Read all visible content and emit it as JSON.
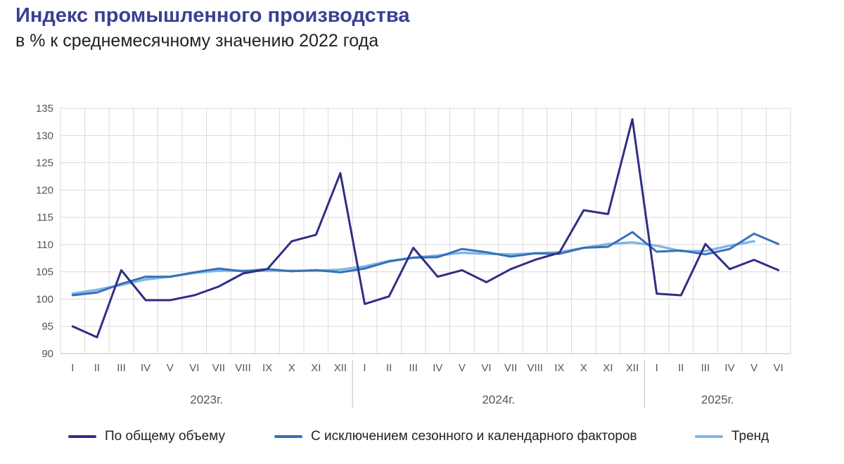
{
  "title": "Индекс промышленного производства",
  "subtitle": "в % к среднемесячному значению 2022 года",
  "colors": {
    "total": "#2f2f86",
    "seasonal": "#3a6fb5",
    "trend": "#7db6ea",
    "grid": "#d9d9d9",
    "axis_text": "#555555"
  },
  "chart_data": {
    "type": "line",
    "ylim": [
      90,
      135
    ],
    "yticks": [
      90,
      95,
      100,
      105,
      110,
      115,
      120,
      125,
      130,
      135
    ],
    "grid": true,
    "legend_position": "bottom",
    "categories": [
      "I",
      "II",
      "III",
      "IV",
      "V",
      "VI",
      "VII",
      "VIII",
      "IX",
      "X",
      "XI",
      "XII",
      "I",
      "II",
      "III",
      "IV",
      "V",
      "VI",
      "VII",
      "VIII",
      "IX",
      "X",
      "XI",
      "XII",
      "I",
      "II",
      "III",
      "IV",
      "V",
      "VI"
    ],
    "groups": [
      {
        "label": "2023г.",
        "months": 12
      },
      {
        "label": "2024г.",
        "months": 12
      },
      {
        "label": "2025г.",
        "months": 6
      }
    ],
    "series": [
      {
        "name": "По общему объему",
        "color": "#2f2f86",
        "values": [
          95.0,
          93.0,
          105.3,
          99.8,
          99.8,
          100.7,
          102.3,
          104.7,
          105.5,
          110.6,
          111.8,
          123.1,
          99.1,
          100.5,
          109.4,
          104.1,
          105.3,
          103.1,
          105.5,
          107.2,
          108.5,
          116.3,
          115.6,
          133.0,
          101.0,
          100.7,
          110.1,
          105.5,
          107.2,
          105.3
        ]
      },
      {
        "name": "С исключением сезонного и календарного факторов",
        "color": "#3a6fb5",
        "values": [
          100.7,
          101.2,
          102.8,
          104.1,
          104.1,
          104.9,
          105.6,
          105.1,
          105.5,
          105.1,
          105.3,
          104.9,
          105.6,
          106.9,
          107.6,
          107.7,
          109.2,
          108.6,
          107.8,
          108.4,
          108.3,
          109.4,
          109.6,
          112.3,
          108.7,
          108.9,
          108.2,
          109.2,
          112.0,
          110.1
        ]
      },
      {
        "name": "Тренд",
        "color": "#7db6ea",
        "values": [
          101.0,
          101.7,
          102.6,
          103.6,
          104.1,
          104.8,
          105.2,
          105.2,
          105.2,
          105.2,
          105.2,
          105.4,
          106.0,
          107.0,
          107.6,
          108.0,
          108.5,
          108.3,
          108.2,
          108.4,
          108.6,
          109.4,
          110.1,
          110.4,
          109.8,
          108.8,
          108.8,
          109.8,
          110.6,
          null
        ]
      }
    ]
  }
}
